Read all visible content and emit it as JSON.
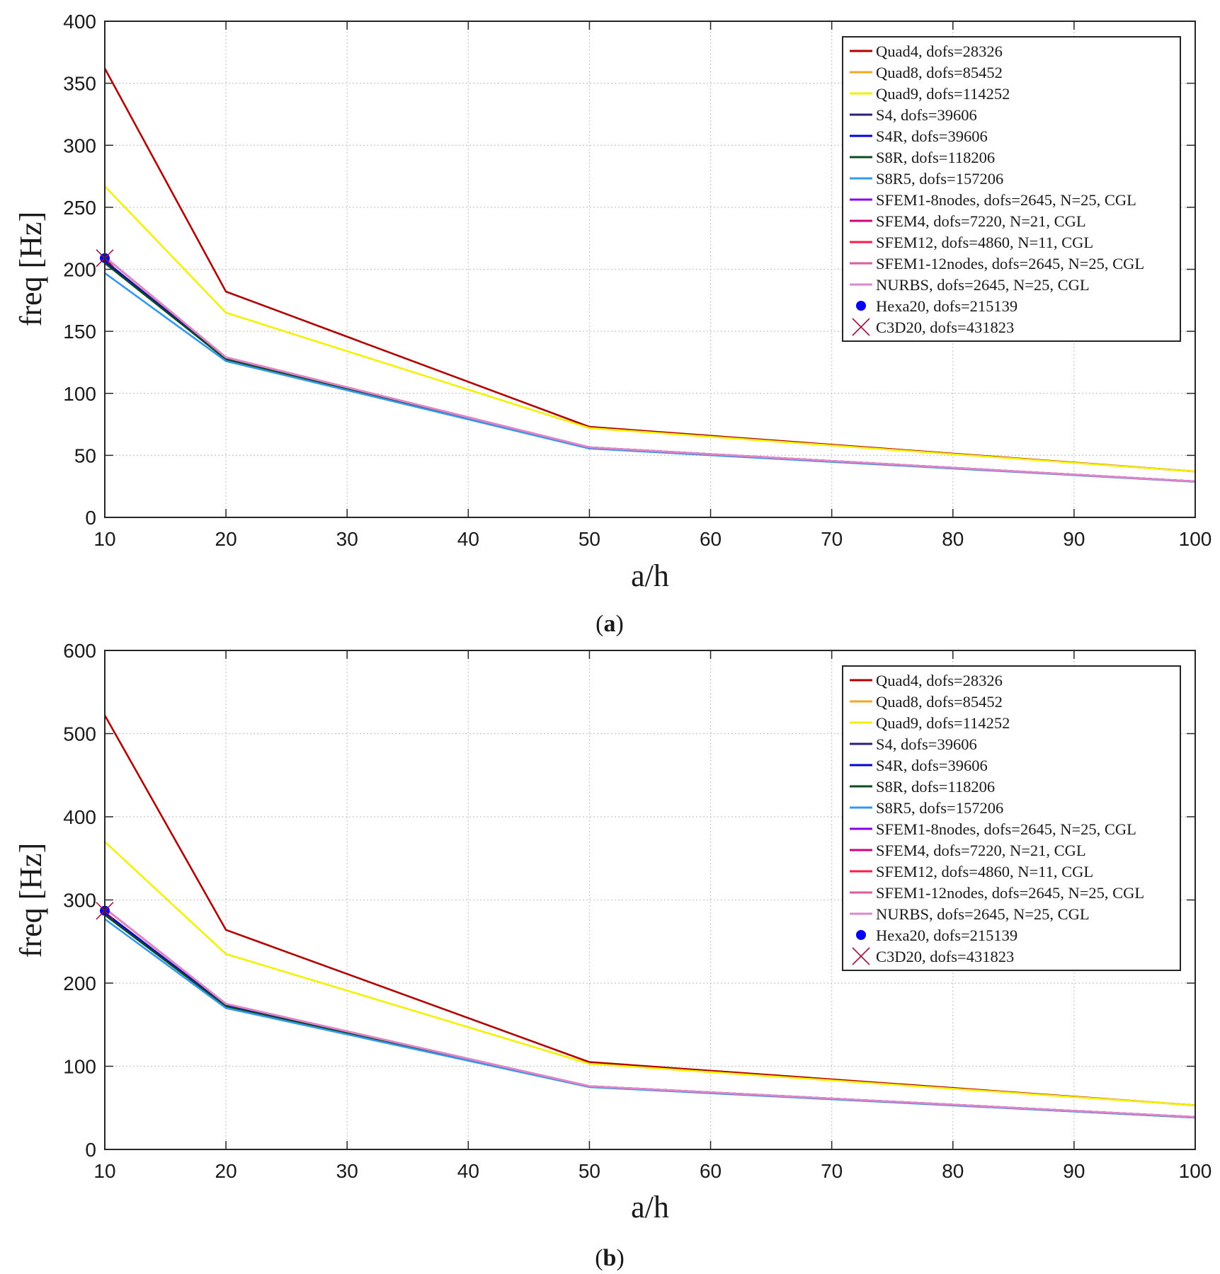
{
  "chart_data": [
    {
      "type": "line",
      "caption_letter": "a",
      "xlabel": "a/h",
      "ylabel": "freq [Hz]",
      "xlim": [
        10,
        100
      ],
      "ylim": [
        0,
        400
      ],
      "xticks": [
        10,
        20,
        30,
        40,
        50,
        60,
        70,
        80,
        90,
        100
      ],
      "yticks": [
        0,
        50,
        100,
        150,
        200,
        250,
        300,
        350,
        400
      ],
      "grid": true,
      "legend_position": "top-right",
      "x": [
        10,
        20,
        50,
        100
      ],
      "series": [
        {
          "name": "Quad4, dofs=28326",
          "color": "#b00000",
          "values": [
            362,
            182,
            73,
            37
          ]
        },
        {
          "name": "Quad8, dofs=85452",
          "color": "#f5a623",
          "values": [
            210,
            129,
            56.5,
            29
          ]
        },
        {
          "name": "Quad9, dofs=114252",
          "color": "#f2f200",
          "values": [
            267,
            165,
            72,
            37
          ]
        },
        {
          "name": "S4, dofs=39606",
          "color": "#2b1f7a",
          "values": [
            207,
            128,
            56,
            29
          ]
        },
        {
          "name": "S4R, dofs=39606",
          "color": "#0000e0",
          "values": [
            206,
            127.5,
            56,
            29
          ]
        },
        {
          "name": "S8R, dofs=118206",
          "color": "#0b4d1e",
          "values": [
            205,
            127.5,
            56,
            29
          ]
        },
        {
          "name": "S8R5, dofs=157206",
          "color": "#3399ee",
          "values": [
            197,
            126,
            55.5,
            28.7
          ]
        },
        {
          "name": "SFEM1-8nodes, dofs=2645, N=25, CGL",
          "color": "#8a00e6",
          "values": [
            210,
            129,
            56.5,
            29
          ]
        },
        {
          "name": "SFEM4, dofs=7220, N=21, CGL",
          "color": "#d1007a",
          "values": [
            210,
            129,
            56.5,
            29
          ]
        },
        {
          "name": "SFEM12, dofs=4860, N=11, CGL",
          "color": "#ff1a4b",
          "values": [
            210,
            129,
            56.5,
            29
          ]
        },
        {
          "name": "SFEM1-12nodes, dofs=2645, N=25, CGL",
          "color": "#e05a9e",
          "values": [
            210,
            129,
            56.5,
            29
          ]
        },
        {
          "name": "NURBS, dofs=2645, N=25, CGL",
          "color": "#dd88cc",
          "values": [
            210,
            129,
            56.5,
            29
          ]
        }
      ],
      "markers": [
        {
          "name": "Hexa20, dofs=215139",
          "color": "#0000ff",
          "symbol": "dot",
          "x": 10,
          "y": 209
        },
        {
          "name": "C3D20, dofs=431823",
          "color": "#a0153e",
          "symbol": "cross",
          "x": 10,
          "y": 209
        }
      ]
    },
    {
      "type": "line",
      "caption_letter": "b",
      "xlabel": "a/h",
      "ylabel": "freq [Hz]",
      "xlim": [
        10,
        100
      ],
      "ylim": [
        0,
        600
      ],
      "xticks": [
        10,
        20,
        30,
        40,
        50,
        60,
        70,
        80,
        90,
        100
      ],
      "yticks": [
        0,
        100,
        200,
        300,
        400,
        500,
        600
      ],
      "grid": true,
      "legend_position": "top-right",
      "x": [
        10,
        20,
        50,
        100
      ],
      "series": [
        {
          "name": "Quad4, dofs=28326",
          "color": "#b00000",
          "values": [
            522,
            264,
            105,
            53
          ]
        },
        {
          "name": "Quad8, dofs=85452",
          "color": "#f5a623",
          "values": [
            290,
            175,
            76,
            39
          ]
        },
        {
          "name": "Quad9, dofs=114252",
          "color": "#f2f200",
          "values": [
            370,
            235,
            103,
            53
          ]
        },
        {
          "name": "S4, dofs=39606",
          "color": "#2b1f7a",
          "values": [
            285,
            173,
            75.5,
            38.5
          ]
        },
        {
          "name": "S4R, dofs=39606",
          "color": "#0000e0",
          "values": [
            284,
            173,
            75.5,
            38.5
          ]
        },
        {
          "name": "S8R, dofs=118206",
          "color": "#0b4d1e",
          "values": [
            282,
            172,
            75.5,
            38.5
          ]
        },
        {
          "name": "S8R5, dofs=157206",
          "color": "#3399ee",
          "values": [
            277,
            170,
            75,
            38.3
          ]
        },
        {
          "name": "SFEM1-8nodes, dofs=2645, N=25, CGL",
          "color": "#8a00e6",
          "values": [
            290,
            175,
            76,
            39
          ]
        },
        {
          "name": "SFEM4, dofs=7220, N=21, CGL",
          "color": "#d1007a",
          "values": [
            290,
            175,
            76,
            39
          ]
        },
        {
          "name": "SFEM12, dofs=4860, N=11, CGL",
          "color": "#ff1a4b",
          "values": [
            290,
            175,
            76,
            39
          ]
        },
        {
          "name": "SFEM1-12nodes, dofs=2645, N=25, CGL",
          "color": "#e05a9e",
          "values": [
            290,
            175,
            76,
            39
          ]
        },
        {
          "name": "NURBS, dofs=2645, N=25, CGL",
          "color": "#dd88cc",
          "values": [
            290,
            175,
            76,
            39
          ]
        }
      ],
      "markers": [
        {
          "name": "Hexa20, dofs=215139",
          "color": "#0000ff",
          "symbol": "dot",
          "x": 10,
          "y": 287
        },
        {
          "name": "C3D20, dofs=431823",
          "color": "#a0153e",
          "symbol": "cross",
          "x": 10,
          "y": 287
        }
      ]
    }
  ]
}
